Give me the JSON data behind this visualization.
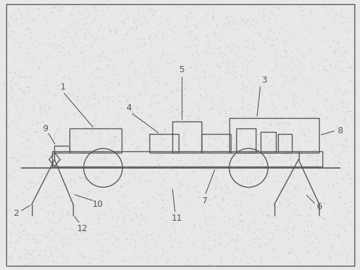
{
  "bg_color": "#e8e8e8",
  "line_color": "#555555",
  "lw": 1.0,
  "fig_width": 5.18,
  "fig_height": 3.89,
  "dpi": 100
}
